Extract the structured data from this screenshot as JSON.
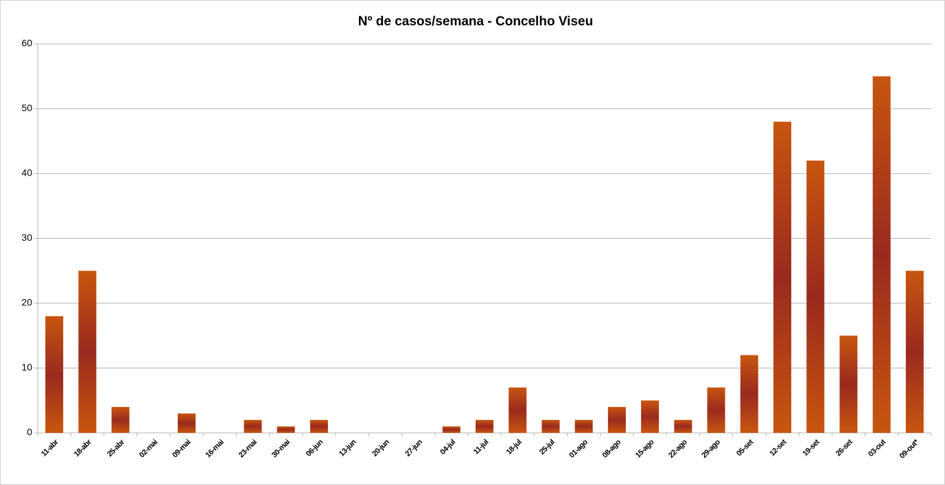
{
  "chart_data": {
    "type": "bar",
    "title": "Nº de casos/semana - Concelho Viseu",
    "categories": [
      "11-abr",
      "18-abr",
      "25-abr",
      "02-mai",
      "09-mai",
      "16-mai",
      "23-mai",
      "30-mai",
      "06-jun",
      "13-jun",
      "20-jun",
      "27-jun",
      "04-jul",
      "11-jul",
      "18-jul",
      "25-jul",
      "01-ago",
      "08-ago",
      "15-ago",
      "22-ago",
      "29-ago",
      "05-set",
      "12-set",
      "19-set",
      "26-set",
      "03-out",
      "09-out*"
    ],
    "values": [
      18,
      25,
      4,
      0,
      3,
      0,
      2,
      1,
      2,
      0,
      0,
      0,
      1,
      2,
      7,
      2,
      2,
      4,
      5,
      2,
      7,
      12,
      48,
      42,
      15,
      55,
      25
    ],
    "color": "#c8560f",
    "color_center": "#9a2a1f",
    "ylim": [
      0,
      60
    ],
    "yticks": [
      0,
      10,
      20,
      30,
      40,
      50,
      60
    ],
    "grid": true
  }
}
